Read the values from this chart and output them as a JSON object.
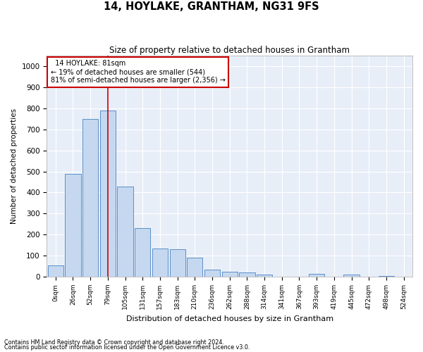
{
  "title": "14, HOYLAKE, GRANTHAM, NG31 9FS",
  "subtitle": "Size of property relative to detached houses in Grantham",
  "xlabel": "Distribution of detached houses by size in Grantham",
  "ylabel": "Number of detached properties",
  "bar_color": "#c5d8f0",
  "bar_edge_color": "#5b8fc9",
  "background_color": "#e8eef8",
  "grid_color": "#ffffff",
  "categories": [
    "0sqm",
    "26sqm",
    "52sqm",
    "79sqm",
    "105sqm",
    "131sqm",
    "157sqm",
    "183sqm",
    "210sqm",
    "236sqm",
    "262sqm",
    "288sqm",
    "314sqm",
    "341sqm",
    "367sqm",
    "393sqm",
    "419sqm",
    "445sqm",
    "472sqm",
    "498sqm",
    "524sqm"
  ],
  "values": [
    55,
    490,
    750,
    790,
    430,
    230,
    135,
    130,
    90,
    35,
    25,
    20,
    10,
    0,
    0,
    15,
    0,
    10,
    0,
    5,
    0
  ],
  "property_line_x": 3.0,
  "annotation_text": "  14 HOYLAKE: 81sqm\n← 19% of detached houses are smaller (544)\n81% of semi-detached houses are larger (2,356) →",
  "annotation_box_color": "#ffffff",
  "annotation_box_edge_color": "#cc0000",
  "vline_color": "#cc0000",
  "footnote1": "Contains HM Land Registry data © Crown copyright and database right 2024.",
  "footnote2": "Contains public sector information licensed under the Open Government Licence v3.0.",
  "ylim": [
    0,
    1050
  ],
  "yticks": [
    0,
    100,
    200,
    300,
    400,
    500,
    600,
    700,
    800,
    900,
    1000
  ]
}
